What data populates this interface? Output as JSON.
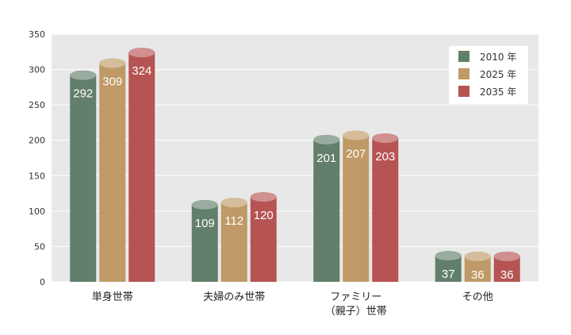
{
  "chart_data": {
    "type": "bar",
    "categories": [
      "単身世帯",
      "夫婦のみ世帯",
      "ファミリー\n（親子）世帯",
      "その他"
    ],
    "series": [
      {
        "name": "2010 年",
        "values": [
          292,
          109,
          201,
          37
        ],
        "color": "#627f6b"
      },
      {
        "name": "2025 年",
        "values": [
          309,
          112,
          207,
          36
        ],
        "color": "#bf9a66"
      },
      {
        "name": "2035 年",
        "values": [
          324,
          120,
          203,
          36
        ],
        "color": "#b55452"
      }
    ],
    "ylim": [
      0,
      350
    ],
    "yticks": [
      0,
      50,
      100,
      150,
      200,
      250,
      300,
      350
    ],
    "grid": true,
    "legend_position": "top-right",
    "title": "",
    "xlabel": "",
    "ylabel": ""
  }
}
